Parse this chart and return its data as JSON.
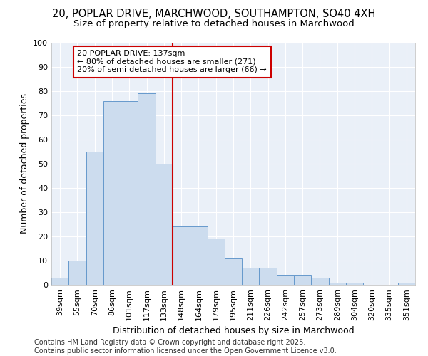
{
  "title_line1": "20, POPLAR DRIVE, MARCHWOOD, SOUTHAMPTON, SO40 4XH",
  "title_line2": "Size of property relative to detached houses in Marchwood",
  "xlabel": "Distribution of detached houses by size in Marchwood",
  "ylabel": "Number of detached properties",
  "categories": [
    "39sqm",
    "55sqm",
    "70sqm",
    "86sqm",
    "101sqm",
    "117sqm",
    "133sqm",
    "148sqm",
    "164sqm",
    "179sqm",
    "195sqm",
    "211sqm",
    "226sqm",
    "242sqm",
    "257sqm",
    "273sqm",
    "289sqm",
    "304sqm",
    "320sqm",
    "335sqm",
    "351sqm"
  ],
  "values": [
    3,
    10,
    55,
    76,
    76,
    79,
    50,
    24,
    24,
    19,
    11,
    7,
    7,
    4,
    4,
    3,
    1,
    1,
    0,
    0,
    1
  ],
  "bar_color": "#ccdcee",
  "bar_edge_color": "#6699cc",
  "vline_color": "#cc0000",
  "vline_pos": 6.5,
  "annotation_text": "20 POPLAR DRIVE: 137sqm\n← 80% of detached houses are smaller (271)\n20% of semi-detached houses are larger (66) →",
  "annotation_box_color": "#cc0000",
  "annotation_bg": "#ffffff",
  "ylim": [
    0,
    100
  ],
  "yticks": [
    0,
    10,
    20,
    30,
    40,
    50,
    60,
    70,
    80,
    90,
    100
  ],
  "plot_bg": "#eaf0f8",
  "fig_bg": "#ffffff",
  "grid_color": "#ffffff",
  "footer": "Contains HM Land Registry data © Crown copyright and database right 2025.\nContains public sector information licensed under the Open Government Licence v3.0.",
  "title_fontsize": 10.5,
  "subtitle_fontsize": 9.5,
  "axis_label_fontsize": 9,
  "tick_fontsize": 8,
  "annot_fontsize": 8,
  "footer_fontsize": 7
}
